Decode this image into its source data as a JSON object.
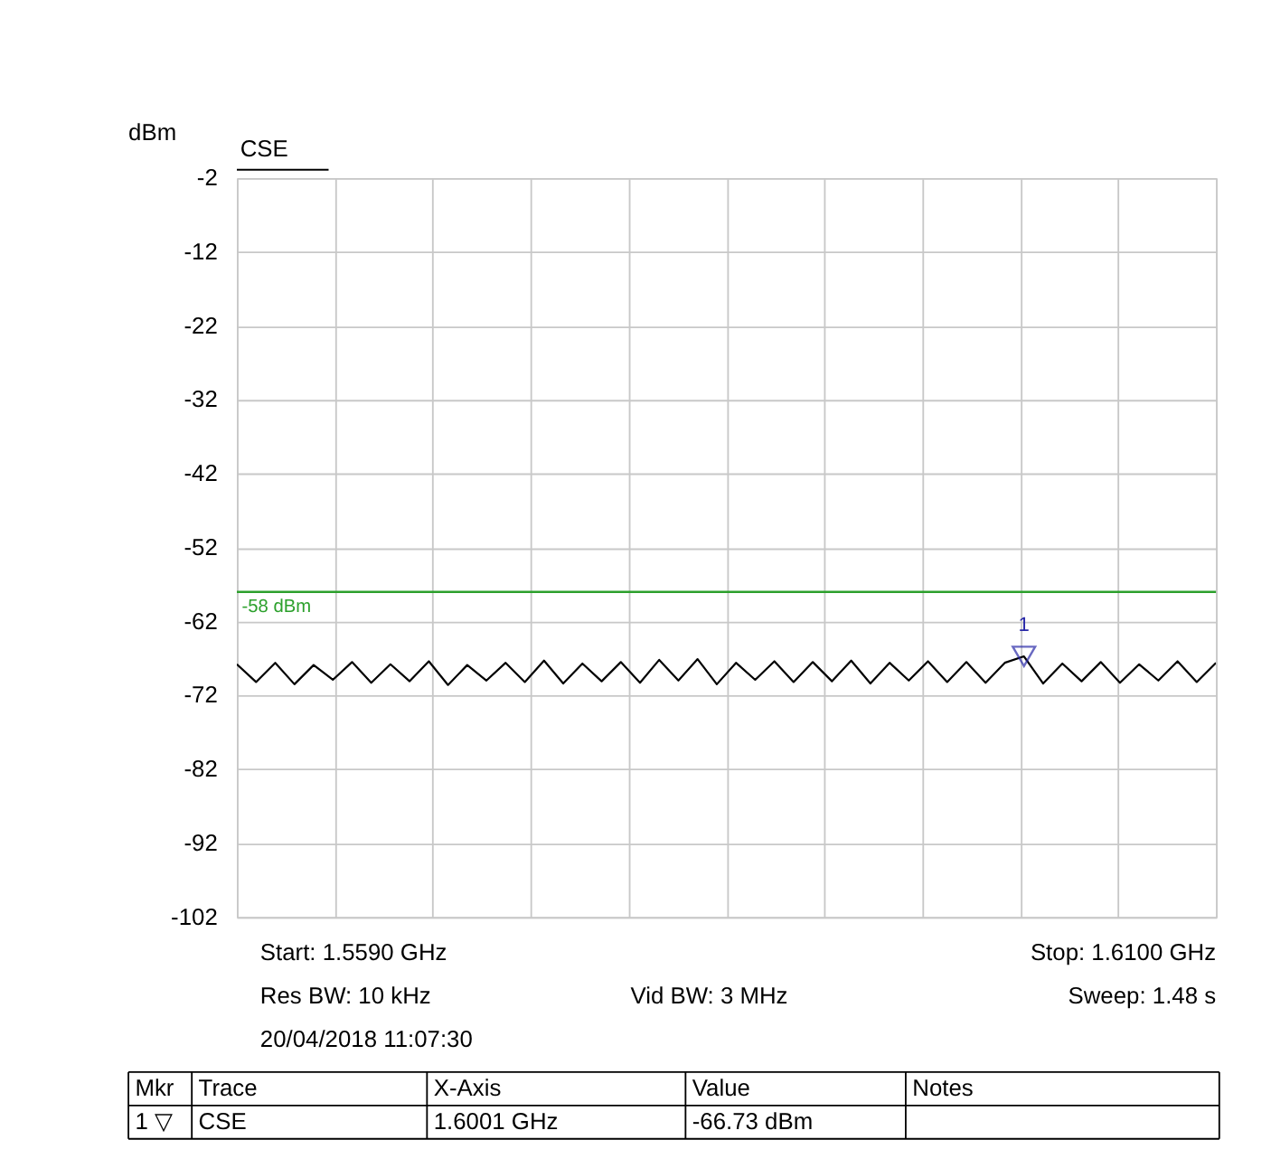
{
  "chart_data": {
    "type": "line",
    "title": "CSE",
    "ylabel": "dBm",
    "categories": [
      null,
      null,
      null,
      null,
      null,
      null,
      null,
      null,
      null,
      null,
      null,
      null,
      null,
      null,
      null,
      null,
      null,
      null,
      null,
      null,
      null,
      null,
      null,
      null,
      null,
      null,
      null,
      null,
      null,
      null,
      null,
      null,
      null,
      null,
      null,
      null,
      null,
      null,
      null,
      null,
      null,
      null,
      null,
      null,
      null,
      null,
      null,
      null,
      null,
      null,
      null,
      null
    ],
    "ylim": [
      -102,
      -2
    ],
    "yticks": [
      -102,
      -92,
      -82,
      -72,
      -62,
      -52,
      -42,
      -32,
      -22,
      -12,
      -2
    ],
    "grid": true,
    "tick_labels": "y",
    "series": [
      {
        "type": "line",
        "color": "#000000",
        "values": [
          -67.8,
          -70.2,
          -67.6,
          -70.5,
          -67.9,
          -69.9,
          -67.5,
          -70.3,
          -67.8,
          -70.1,
          -67.4,
          -70.6,
          -67.9,
          -70.0,
          -67.6,
          -70.2,
          -67.3,
          -70.4,
          -67.7,
          -70.1,
          -67.5,
          -70.3,
          -67.2,
          -70.0,
          -67.1,
          -70.5,
          -67.6,
          -69.9,
          -67.4,
          -70.2,
          -67.5,
          -70.1,
          -67.3,
          -70.4,
          -67.6,
          -70.0,
          -67.4,
          -70.2,
          -67.5,
          -70.3,
          -67.6,
          -66.73,
          -70.4,
          -67.7,
          -70.1,
          -67.5,
          -70.3,
          -67.8,
          -70.0,
          -67.4,
          -70.2,
          -67.6
        ]
      },
      {
        "type": "scatter",
        "color": "#2a2aa8",
        "marker": "triangle",
        "values": [
          null,
          null,
          null,
          null,
          null,
          null,
          null,
          null,
          null,
          null,
          null,
          null,
          null,
          null,
          null,
          null,
          null,
          null,
          null,
          null,
          null,
          null,
          null,
          null,
          null,
          null,
          null,
          null,
          null,
          null,
          null,
          null,
          null,
          null,
          null,
          null,
          null,
          null,
          null,
          null,
          null,
          -66.73,
          null,
          null,
          null,
          null,
          null,
          null,
          null,
          null,
          null,
          null
        ]
      }
    ],
    "ref_lines": [
      {
        "axis": "y",
        "value": -58,
        "label": "-58 dBm",
        "color": "#2ca02c"
      }
    ],
    "annotations": [
      "1",
      "Start: 1.5590 GHz",
      "Stop: 1.6100 GHz",
      "Res BW: 10 kHz",
      "Vid BW: 3 MHz",
      "Sweep: 1.48 s",
      "20/04/2018 11:07:30",
      "Mkr",
      "Trace",
      "X-Axis",
      "Value",
      "Notes",
      "1 ▽",
      "CSE",
      "1.6001 GHz",
      "-66.73 dBm"
    ]
  }
}
